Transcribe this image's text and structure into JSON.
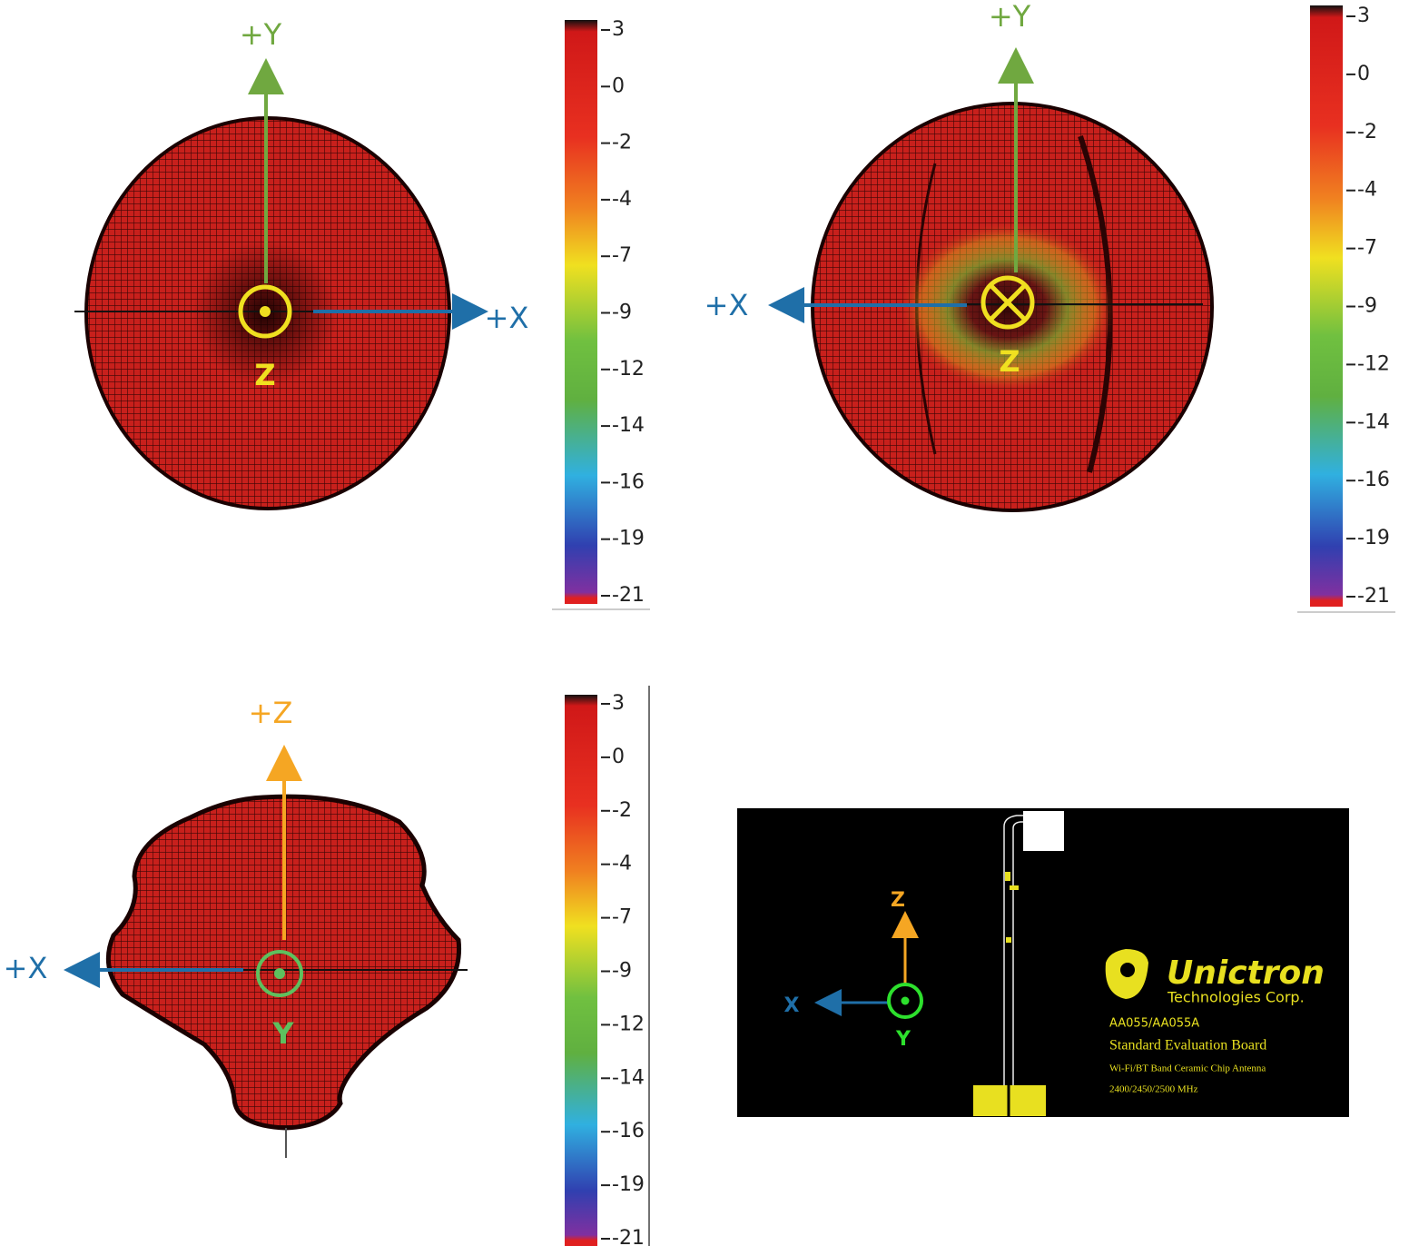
{
  "panels": [
    {
      "axes": {
        "up": "+Y",
        "side": "+X",
        "normal": "Z"
      },
      "colorbar_ticks": [
        3,
        0,
        -2,
        -4,
        -7,
        -9,
        -12,
        -14,
        -16,
        -19,
        -21
      ]
    },
    {
      "axes": {
        "up": "+Y",
        "side": "+X",
        "normal": "Z"
      },
      "colorbar_ticks": [
        3,
        0,
        -2,
        -4,
        -7,
        -9,
        -12,
        -14,
        -16,
        -19,
        -21
      ]
    },
    {
      "axes": {
        "up": "+Z",
        "side": "+X",
        "normal": "Y"
      },
      "colorbar_ticks": [
        3,
        0,
        -2,
        -4,
        -7,
        -9,
        -12,
        -14,
        -16,
        -19,
        -21
      ]
    }
  ],
  "board": {
    "brand": "Unictron",
    "company": "Technologies Corp.",
    "model": "AA055/AA055A",
    "title": "Standard Evaluation Board",
    "description": "Wi-Fi/BT Band Ceramic Chip Antenna",
    "frequency": "2400/2450/2500  MHz",
    "axes": {
      "z": "Z",
      "x": "X",
      "y": "Y"
    }
  }
}
